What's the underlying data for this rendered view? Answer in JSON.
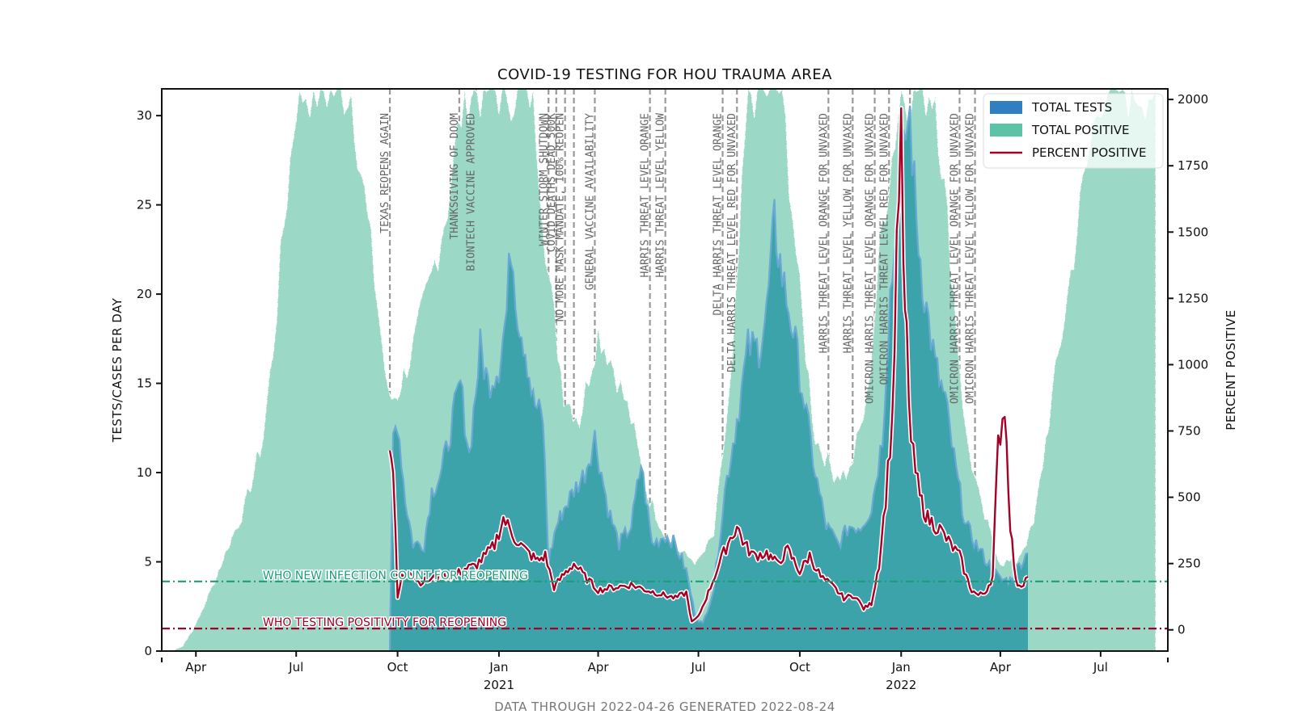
{
  "chart_data": {
    "type": "area",
    "title": "COVID-19 TESTING FOR HOU TRAUMA AREA",
    "ylabel_left": "TESTS/CASES PER DAY",
    "ylabel_right": "PERCENT POSITIVE",
    "footer": "DATA THROUGH 2022-04-26 GENERATED 2022-08-24",
    "xlim": [
      "2020-03-01",
      "2022-08-31"
    ],
    "ylim_left": [
      0,
      31.5
    ],
    "ylim_right": [
      -80,
      2040
    ],
    "x_ticks": [
      {
        "date": "2020-04-01",
        "label": "Apr",
        "year": ""
      },
      {
        "date": "2020-07-01",
        "label": "Jul",
        "year": ""
      },
      {
        "date": "2020-10-01",
        "label": "Oct",
        "year": ""
      },
      {
        "date": "2021-01-01",
        "label": "Jan",
        "year": "2021"
      },
      {
        "date": "2021-04-01",
        "label": "Apr",
        "year": ""
      },
      {
        "date": "2021-07-01",
        "label": "Jul",
        "year": ""
      },
      {
        "date": "2021-10-01",
        "label": "Oct",
        "year": ""
      },
      {
        "date": "2022-01-01",
        "label": "Jan",
        "year": "2022"
      },
      {
        "date": "2022-04-01",
        "label": "Apr",
        "year": ""
      },
      {
        "date": "2022-07-01",
        "label": "Jul",
        "year": ""
      }
    ],
    "y_ticks_left": [
      0,
      5,
      10,
      15,
      20,
      25,
      30
    ],
    "y_ticks_right": [
      0,
      250,
      500,
      750,
      1000,
      1250,
      1500,
      1750,
      2000
    ],
    "legend": {
      "placement": "top-right",
      "entries": [
        {
          "label": "TOTAL TESTS",
          "color": "#2f7fc1"
        },
        {
          "label": "TOTAL POSITIVE",
          "color": "#5cc3a6"
        },
        {
          "label": "PERCENT POSITIVE",
          "color": "#a50026"
        }
      ]
    },
    "colors": {
      "tests_fill": "#3ba3a9",
      "tests_line": "#6aa9d4",
      "positive_fill": "#9bd9c6",
      "percent": "#a50026",
      "who_infection": "#1b9e77",
      "who_positivity": "#a50026",
      "event_line": "#999999"
    },
    "reference_lines": [
      {
        "label": "WHO NEW INFECTION COUNT FOR REOPENING",
        "value": 3.9,
        "axis": "left",
        "color": "#1b9e77"
      },
      {
        "label": "WHO TESTING POSITIVITY FOR REOPENING",
        "value": 5,
        "axis": "right",
        "color": "#a50026"
      }
    ],
    "events": [
      {
        "date": "2020-09-24",
        "label": "TEXAS REOPENS AGAIN"
      },
      {
        "date": "2020-11-26",
        "label": "THANKSGIVING OF DOOM"
      },
      {
        "date": "2020-12-11",
        "label": "BIONTECH VACCINE APPROVED"
      },
      {
        "date": "2021-02-15",
        "label": "WINTER STORM SHUTDOWN"
      },
      {
        "date": "2021-02-22",
        "label": "COVID DEATHS DEAD 500K"
      },
      {
        "date": "2021-03-02",
        "label": "NO MORE MASK MANDATE, 100% REOPEN"
      },
      {
        "date": "2021-03-10",
        "label": ""
      },
      {
        "date": "2021-03-29",
        "label": "GENERAL VACCINE AVAILABILITY"
      },
      {
        "date": "2021-05-18",
        "label": "HARRIS THREAT LEVEL ORANGE"
      },
      {
        "date": "2021-06-01",
        "label": "HARRIS THREAT LEVEL YELLOW"
      },
      {
        "date": "2021-07-23",
        "label": "DELTA HARRIS THREAT LEVEL ORANGE"
      },
      {
        "date": "2021-08-05",
        "label": "DELTA HARRIS THREAT LEVEL RED FOR UNVAXED"
      },
      {
        "date": "2021-10-27",
        "label": "HARRIS THREAT LEVEL ORANGE FOR UNVAXED"
      },
      {
        "date": "2021-11-18",
        "label": "HARRIS THREAT LEVEL YELLOW FOR UNVAXED"
      },
      {
        "date": "2021-12-08",
        "label": "OMICRON HARRIS THREAT LEVEL ORANGE FOR UNVAXED"
      },
      {
        "date": "2021-12-21",
        "label": "OMICRON HARRIS THREAT LEVEL RED FOR UNVAXED"
      },
      {
        "date": "2022-01-09",
        "label": ""
      },
      {
        "date": "2022-02-23",
        "label": "OMICRON HARRIS THREAT LEVEL ORANGE FOR UNVAXED"
      },
      {
        "date": "2022-03-09",
        "label": "OMICRON HARRIS THREAT LEVEL YELLOW FOR UNVAXED"
      }
    ],
    "series": [
      {
        "name": "TOTAL POSITIVE",
        "axis": "left",
        "kind": "area",
        "x": [
          "2020-03-10",
          "2020-03-20",
          "2020-04-01",
          "2020-04-15",
          "2020-05-01",
          "2020-05-15",
          "2020-06-01",
          "2020-06-10",
          "2020-06-20",
          "2020-07-01",
          "2020-07-10",
          "2020-07-20",
          "2020-08-01",
          "2020-08-20",
          "2020-09-10",
          "2020-09-23",
          "2020-10-01",
          "2020-10-15",
          "2020-11-01",
          "2020-11-15",
          "2020-12-01",
          "2020-12-15",
          "2021-01-01",
          "2021-01-15",
          "2021-02-01",
          "2021-02-15",
          "2021-03-01",
          "2021-03-15",
          "2021-04-01",
          "2021-04-15",
          "2021-05-01",
          "2021-05-15",
          "2021-06-01",
          "2021-06-15",
          "2021-07-01",
          "2021-07-15",
          "2021-08-01",
          "2021-08-15",
          "2021-09-01",
          "2021-09-15",
          "2021-10-01",
          "2021-10-15",
          "2021-11-01",
          "2021-11-15",
          "2021-12-01",
          "2021-12-15",
          "2022-01-01",
          "2022-01-15",
          "2022-02-01",
          "2022-02-15",
          "2022-03-01",
          "2022-03-15",
          "2022-04-01",
          "2022-04-15",
          "2022-05-01",
          "2022-05-15",
          "2022-06-01",
          "2022-06-15",
          "2022-07-01",
          "2022-07-15",
          "2022-08-01",
          "2022-08-20"
        ],
        "values": [
          0,
          0.3,
          1.5,
          3.5,
          6,
          8,
          12,
          17,
          24,
          31,
          31.5,
          31.5,
          31.5,
          31.5,
          21,
          14,
          14.5,
          17,
          21,
          25,
          31.5,
          31.5,
          31.5,
          31.5,
          31.5,
          21,
          14.5,
          13,
          18,
          16,
          13,
          9,
          6.5,
          5.5,
          5,
          6.5,
          16,
          31.5,
          31.5,
          31.5,
          20,
          12,
          10,
          10,
          14,
          24,
          31.5,
          31.5,
          31.5,
          22,
          12,
          8,
          5,
          5,
          7,
          13,
          20,
          26,
          31.5,
          31.5,
          31.5,
          31.5
        ]
      },
      {
        "name": "TOTAL TESTS",
        "axis": "left",
        "kind": "area",
        "x": [
          "2020-09-24",
          "2020-09-27",
          "2020-10-01",
          "2020-10-08",
          "2020-10-15",
          "2020-10-25",
          "2020-11-01",
          "2020-11-10",
          "2020-11-20",
          "2020-11-27",
          "2020-12-05",
          "2020-12-15",
          "2020-12-22",
          "2021-01-01",
          "2021-01-08",
          "2021-01-12",
          "2021-01-18",
          "2021-01-25",
          "2021-02-01",
          "2021-02-10",
          "2021-02-15",
          "2021-02-22",
          "2021-03-01",
          "2021-03-10",
          "2021-03-20",
          "2021-03-29",
          "2021-04-10",
          "2021-04-20",
          "2021-05-01",
          "2021-05-10",
          "2021-05-20",
          "2021-06-01",
          "2021-06-10",
          "2021-06-20",
          "2021-06-28",
          "2021-07-05",
          "2021-07-15",
          "2021-07-25",
          "2021-08-05",
          "2021-08-15",
          "2021-08-25",
          "2021-09-01",
          "2021-09-08",
          "2021-09-15",
          "2021-09-25",
          "2021-10-05",
          "2021-10-15",
          "2021-10-25",
          "2021-11-05",
          "2021-11-15",
          "2021-11-25",
          "2021-12-05",
          "2021-12-15",
          "2021-12-22",
          "2022-01-01",
          "2022-01-05",
          "2022-01-09",
          "2022-01-15",
          "2022-01-22",
          "2022-02-01",
          "2022-02-10",
          "2022-02-20",
          "2022-03-01",
          "2022-03-10",
          "2022-03-20",
          "2022-04-01",
          "2022-04-10",
          "2022-04-20",
          "2022-04-26"
        ],
        "values": [
          0,
          12,
          13,
          8.5,
          6,
          6,
          9,
          10,
          13,
          15,
          11,
          17,
          15,
          16,
          19,
          23,
          19,
          17,
          14,
          13,
          5,
          7,
          8,
          9,
          10,
          12,
          8,
          6,
          7,
          10.5,
          6,
          6.5,
          6,
          4.5,
          2,
          1.5,
          3.5,
          9,
          13,
          17,
          17,
          19,
          24,
          21,
          18,
          14,
          10,
          7,
          6,
          7,
          7,
          8,
          12,
          20,
          26,
          29,
          30,
          24,
          20,
          16,
          14,
          10,
          7,
          6,
          5,
          4,
          4,
          5,
          5.5
        ]
      },
      {
        "name": "PERCENT POSITIVE",
        "axis": "right",
        "kind": "line",
        "x": [
          "2020-09-24",
          "2020-09-27",
          "2020-10-01",
          "2020-10-05",
          "2020-10-12",
          "2020-10-20",
          "2020-11-01",
          "2020-11-10",
          "2020-11-20",
          "2020-12-01",
          "2020-12-10",
          "2020-12-20",
          "2020-12-28",
          "2021-01-05",
          "2021-01-15",
          "2021-01-25",
          "2021-02-05",
          "2021-02-12",
          "2021-02-20",
          "2021-03-01",
          "2021-03-10",
          "2021-03-20",
          "2021-04-01",
          "2021-04-15",
          "2021-05-01",
          "2021-05-15",
          "2021-06-01",
          "2021-06-10",
          "2021-06-20",
          "2021-06-25",
          "2021-07-01",
          "2021-07-10",
          "2021-07-20",
          "2021-07-28",
          "2021-08-05",
          "2021-08-12",
          "2021-08-20",
          "2021-09-01",
          "2021-09-10",
          "2021-09-20",
          "2021-10-01",
          "2021-10-10",
          "2021-10-20",
          "2021-11-01",
          "2021-11-10",
          "2021-11-20",
          "2021-11-28",
          "2021-12-05",
          "2021-12-12",
          "2021-12-18",
          "2021-12-24",
          "2021-12-28",
          "2022-01-01",
          "2022-01-03",
          "2022-01-06",
          "2022-01-10",
          "2022-01-18",
          "2022-01-25",
          "2022-02-05",
          "2022-02-15",
          "2022-02-23",
          "2022-03-01",
          "2022-03-06",
          "2022-03-12",
          "2022-03-18",
          "2022-03-25",
          "2022-03-30",
          "2022-04-05",
          "2022-04-10",
          "2022-04-15",
          "2022-04-20",
          "2022-04-26"
        ],
        "values": [
          720,
          600,
          120,
          200,
          230,
          180,
          190,
          210,
          200,
          230,
          240,
          280,
          320,
          420,
          350,
          300,
          260,
          280,
          160,
          210,
          250,
          200,
          150,
          160,
          170,
          150,
          130,
          120,
          140,
          30,
          50,
          140,
          250,
          330,
          390,
          320,
          280,
          290,
          250,
          300,
          220,
          280,
          200,
          160,
          120,
          130,
          80,
          100,
          250,
          500,
          800,
          1400,
          1900,
          1300,
          1100,
          700,
          500,
          420,
          380,
          320,
          280,
          200,
          150,
          130,
          140,
          200,
          700,
          850,
          400,
          180,
          170,
          200
        ]
      }
    ]
  }
}
